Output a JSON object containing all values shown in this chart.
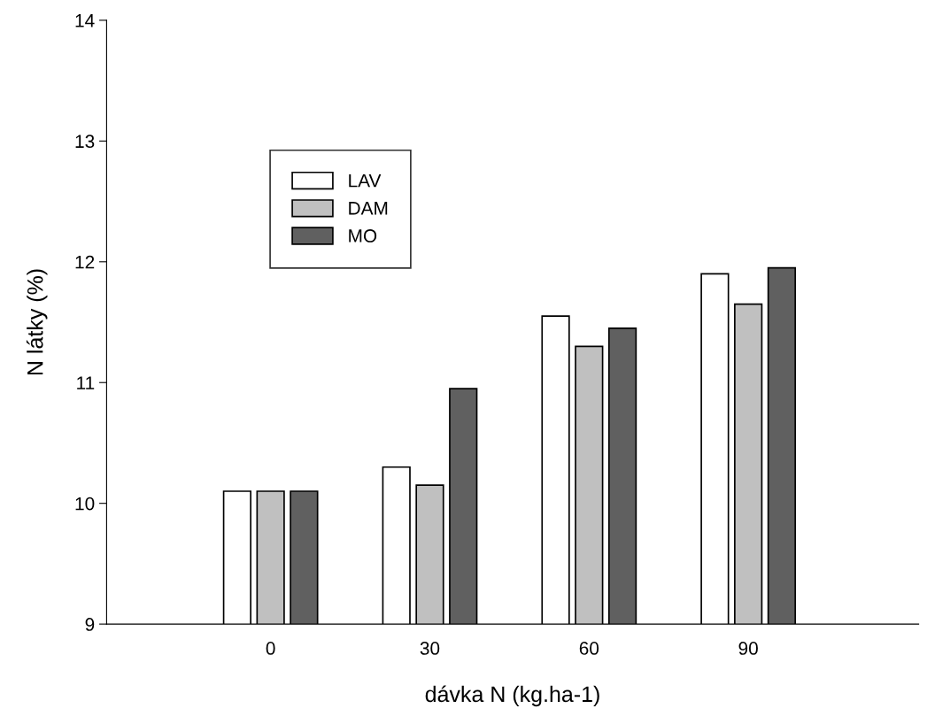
{
  "chart_data": {
    "type": "bar",
    "xlabel": "dávka N (kg.ha-1)",
    "ylabel": "N látky (%)",
    "categories": [
      "0",
      "30",
      "60",
      "90"
    ],
    "series": [
      {
        "name": "LAV",
        "color": "#ffffff",
        "values": [
          10.1,
          10.3,
          11.55,
          11.9
        ]
      },
      {
        "name": "DAM",
        "color": "#c0c0c0",
        "values": [
          10.1,
          10.15,
          11.3,
          11.65
        ]
      },
      {
        "name": "MO",
        "color": "#606060",
        "values": [
          10.1,
          10.95,
          11.45,
          11.95
        ]
      }
    ],
    "ylim": [
      9,
      14
    ],
    "yticks": [
      9,
      10,
      11,
      12,
      13,
      14
    ],
    "grid": false,
    "legend": "top left"
  }
}
